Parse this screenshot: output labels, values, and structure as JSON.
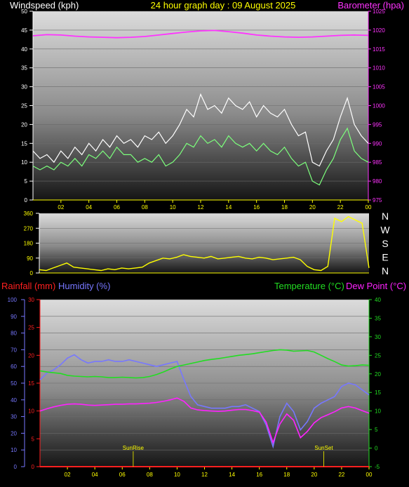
{
  "header": {
    "windspeed_label": "Windspeed (kph)",
    "title": "24 hour graph day : 09 August 2025",
    "barometer_label": "Barometer (hpa)",
    "rainfall_label": "Rainfall (mm)",
    "humidity_label": "Humidity (%)",
    "temperature_label": "Temperature (°C)",
    "dewpoint_label": "Dew Point (°C)",
    "sunrise_label": "SunRise",
    "sunset_label": "SunSet"
  },
  "colors": {
    "wind_gust": "#ffffff",
    "wind_avg": "#7cff7c",
    "barometer": "#ff33ff",
    "direction": "#ffff00",
    "rainfall": "#ff2020",
    "humidity": "#7777ff",
    "temperature": "#22dd22",
    "dewpoint": "#ff22ff",
    "axis_yellow": "#ffff00"
  },
  "chart_data": [
    {
      "type": "line",
      "name": "wind-barometer",
      "x_tick_labels": [
        "02",
        "04",
        "06",
        "08",
        "10",
        "12",
        "14",
        "16",
        "18",
        "20",
        "22",
        "00"
      ],
      "y_left_ticks": [
        "0",
        "5",
        "10",
        "15",
        "20",
        "25",
        "30",
        "35",
        "40",
        "45",
        "50"
      ],
      "y_right_ticks": [
        "975",
        "980",
        "985",
        "990",
        "995",
        "1000",
        "1005",
        "1010",
        "1015",
        "1020",
        "1025"
      ],
      "ylim_left": [
        0,
        50
      ],
      "ylim_right": [
        975,
        1025
      ],
      "hour_range": [
        0,
        24
      ],
      "series": [
        {
          "name": "Windspeed (kph)",
          "role": "gust",
          "x": [
            0,
            0.5,
            1,
            1.5,
            2,
            2.5,
            3,
            3.5,
            4,
            4.5,
            5,
            5.5,
            6,
            6.5,
            7,
            7.5,
            8,
            8.5,
            9,
            9.5,
            10,
            10.5,
            11,
            11.5,
            12,
            12.5,
            13,
            13.5,
            14,
            14.5,
            15,
            15.5,
            16,
            16.5,
            17,
            17.5,
            18,
            18.5,
            19,
            19.5,
            20,
            20.5,
            21,
            21.5,
            22,
            22.5,
            23,
            23.5,
            24
          ],
          "values": [
            13,
            11,
            12,
            10,
            13,
            11,
            14,
            12,
            15,
            13,
            16,
            14,
            17,
            15,
            16,
            14,
            17,
            16,
            18,
            15,
            17,
            20,
            24,
            22,
            28,
            24,
            25,
            23,
            27,
            25,
            24,
            26,
            22,
            25,
            23,
            22,
            24,
            20,
            17,
            18,
            10,
            9,
            13,
            16,
            22,
            27,
            20,
            17,
            15
          ]
        },
        {
          "name": "Windspeed (kph)",
          "role": "average",
          "x": [
            0,
            0.5,
            1,
            1.5,
            2,
            2.5,
            3,
            3.5,
            4,
            4.5,
            5,
            5.5,
            6,
            6.5,
            7,
            7.5,
            8,
            8.5,
            9,
            9.5,
            10,
            10.5,
            11,
            11.5,
            12,
            12.5,
            13,
            13.5,
            14,
            14.5,
            15,
            15.5,
            16,
            16.5,
            17,
            17.5,
            18,
            18.5,
            19,
            19.5,
            20,
            20.5,
            21,
            21.5,
            22,
            22.5,
            23,
            23.5,
            24
          ],
          "values": [
            9,
            8,
            9,
            8,
            10,
            9,
            11,
            9,
            12,
            11,
            13,
            11,
            14,
            12,
            12,
            10,
            11,
            10,
            12,
            9,
            10,
            12,
            15,
            14,
            17,
            15,
            16,
            14,
            17,
            15,
            14,
            15,
            13,
            15,
            13,
            12,
            14,
            11,
            9,
            10,
            5,
            4,
            8,
            11,
            16,
            19,
            13,
            11,
            10
          ]
        },
        {
          "name": "Barometer (hpa)",
          "axis": "right",
          "x": [
            0,
            1,
            2,
            3,
            4,
            5,
            6,
            7,
            8,
            9,
            10,
            11,
            12,
            13,
            14,
            15,
            16,
            17,
            18,
            19,
            20,
            21,
            22,
            23,
            24
          ],
          "values": [
            1018.5,
            1018.8,
            1018.7,
            1018.4,
            1018.2,
            1018.1,
            1018.0,
            1018.1,
            1018.3,
            1018.7,
            1019.1,
            1019.5,
            1019.8,
            1019.9,
            1019.6,
            1019.2,
            1018.7,
            1018.4,
            1018.2,
            1018.1,
            1018.2,
            1018.4,
            1018.6,
            1018.7,
            1018.6
          ]
        }
      ]
    },
    {
      "type": "line",
      "name": "wind-direction",
      "x_tick_labels": [
        "02",
        "04",
        "06",
        "08",
        "10",
        "12",
        "14",
        "16",
        "18",
        "20",
        "22",
        "00"
      ],
      "y_left_ticks": [
        "0",
        "90",
        "180",
        "270",
        "360"
      ],
      "compass_labels": [
        "N",
        "W",
        "S",
        "E",
        "N"
      ],
      "ylim": [
        0,
        360
      ],
      "series": [
        {
          "name": "Direction",
          "x": [
            0,
            0.5,
            1,
            1.5,
            2,
            2.5,
            3,
            3.5,
            4,
            4.5,
            5,
            5.5,
            6,
            6.5,
            7,
            7.5,
            8,
            8.5,
            9,
            9.5,
            10,
            10.5,
            11,
            11.5,
            12,
            12.5,
            13,
            13.5,
            14,
            14.5,
            15,
            15.5,
            16,
            16.5,
            17,
            17.5,
            18,
            18.5,
            19,
            19.5,
            20,
            20.5,
            21,
            21.5,
            22,
            22.5,
            23,
            23.5,
            24
          ],
          "values": [
            20,
            15,
            30,
            45,
            60,
            35,
            30,
            25,
            20,
            15,
            25,
            20,
            30,
            25,
            30,
            35,
            60,
            75,
            90,
            85,
            95,
            110,
            100,
            95,
            90,
            100,
            85,
            90,
            95,
            100,
            90,
            85,
            95,
            90,
            80,
            85,
            90,
            95,
            80,
            40,
            20,
            15,
            40,
            330,
            310,
            340,
            320,
            300,
            30
          ]
        }
      ]
    },
    {
      "type": "line",
      "name": "rain-humidity-temperature",
      "x_tick_labels": [
        "02",
        "04",
        "06",
        "08",
        "10",
        "12",
        "14",
        "16",
        "18",
        "20",
        "22",
        "00"
      ],
      "humidity_ticks": [
        "0",
        "10",
        "20",
        "30",
        "40",
        "50",
        "60",
        "70",
        "80",
        "90",
        "100"
      ],
      "rainfall_ticks": [
        "0",
        "5",
        "10",
        "15",
        "20",
        "25",
        "30"
      ],
      "temperature_ticks": [
        "-5",
        "0",
        "5",
        "10",
        "15",
        "20",
        "25",
        "30",
        "35",
        "40"
      ],
      "ylim_humidity": [
        0,
        100
      ],
      "ylim_rainfall": [
        0,
        30
      ],
      "ylim_temperature": [
        -5,
        40
      ],
      "series": [
        {
          "name": "Rainfall (mm)",
          "axis": "rainfall",
          "x": [
            0,
            24
          ],
          "values": [
            0,
            0
          ]
        },
        {
          "name": "Humidity (%)",
          "axis": "humidity",
          "x": [
            0,
            0.5,
            1,
            1.5,
            2,
            2.5,
            3,
            3.5,
            4,
            4.5,
            5,
            5.5,
            6,
            6.5,
            7,
            7.5,
            8,
            8.5,
            9,
            9.5,
            10,
            10.5,
            11,
            11.5,
            12,
            12.5,
            13,
            13.5,
            14,
            14.5,
            15,
            15.5,
            16,
            16.5,
            17,
            17.5,
            18,
            18.5,
            19,
            19.5,
            20,
            20.5,
            21,
            21.5,
            22,
            22.5,
            23,
            23.5,
            24
          ],
          "values": [
            52,
            56,
            58,
            61,
            65,
            67,
            64,
            62,
            63,
            63,
            64,
            63,
            63,
            64,
            63,
            62,
            61,
            60,
            61,
            62,
            63,
            52,
            42,
            37,
            36,
            35,
            35,
            35,
            36,
            36,
            37,
            35,
            33,
            25,
            12,
            30,
            38,
            33,
            22,
            27,
            35,
            38,
            40,
            42,
            48,
            50,
            49,
            46,
            43
          ]
        },
        {
          "name": "Temperature (°C)",
          "axis": "temperature",
          "x": [
            0,
            0.5,
            1,
            1.5,
            2,
            2.5,
            3,
            3.5,
            4,
            4.5,
            5,
            5.5,
            6,
            6.5,
            7,
            7.5,
            8,
            8.5,
            9,
            9.5,
            10,
            10.5,
            11,
            11.5,
            12,
            12.5,
            13,
            13.5,
            14,
            14.5,
            15,
            15.5,
            16,
            16.5,
            17,
            17.5,
            18,
            18.5,
            19,
            19.5,
            20,
            20.5,
            21,
            21.5,
            22,
            22.5,
            23,
            23.5,
            24
          ],
          "values": [
            20.8,
            20.5,
            20.3,
            20.1,
            19.6,
            19.4,
            19.3,
            19.2,
            19.3,
            19.2,
            19.0,
            19.0,
            19.1,
            19.0,
            18.9,
            19.0,
            19.3,
            19.8,
            20.5,
            21.3,
            22.0,
            22.4,
            22.8,
            23.2,
            23.6,
            23.9,
            24.1,
            24.4,
            24.7,
            25.0,
            25.2,
            25.4,
            25.7,
            26.0,
            26.3,
            26.5,
            26.4,
            26.1,
            26.2,
            26.3,
            25.9,
            25.0,
            24.1,
            23.3,
            22.4,
            22.1,
            22.2,
            22.4,
            22.3
          ]
        },
        {
          "name": "Dew Point (°C)",
          "axis": "temperature",
          "x": [
            0,
            0.5,
            1,
            1.5,
            2,
            2.5,
            3,
            3.5,
            4,
            4.5,
            5,
            5.5,
            6,
            6.5,
            7,
            7.5,
            8,
            8.5,
            9,
            9.5,
            10,
            10.5,
            11,
            11.5,
            12,
            12.5,
            13,
            13.5,
            14,
            14.5,
            15,
            15.5,
            16,
            16.5,
            17,
            17.5,
            18,
            18.5,
            19,
            19.5,
            20,
            20.5,
            21,
            21.5,
            22,
            22.5,
            23,
            23.5,
            24
          ],
          "values": [
            10.0,
            10.6,
            11.1,
            11.5,
            11.8,
            11.9,
            11.8,
            11.6,
            11.5,
            11.6,
            11.7,
            11.8,
            11.8,
            11.9,
            11.9,
            12.0,
            12.1,
            12.3,
            12.6,
            13.0,
            13.5,
            12.6,
            10.8,
            10.3,
            10.1,
            10.0,
            9.9,
            10.0,
            10.2,
            10.4,
            10.4,
            10.1,
            9.7,
            7.0,
            1.5,
            6.5,
            9.2,
            7.5,
            2.8,
            4.5,
            6.8,
            8.2,
            9.0,
            9.8,
            10.8,
            11.2,
            10.8,
            10.1,
            9.4
          ]
        }
      ],
      "annotations": [
        {
          "label": "SunRise",
          "hour": 6.8
        },
        {
          "label": "SunSet",
          "hour": 20.7
        }
      ]
    }
  ]
}
